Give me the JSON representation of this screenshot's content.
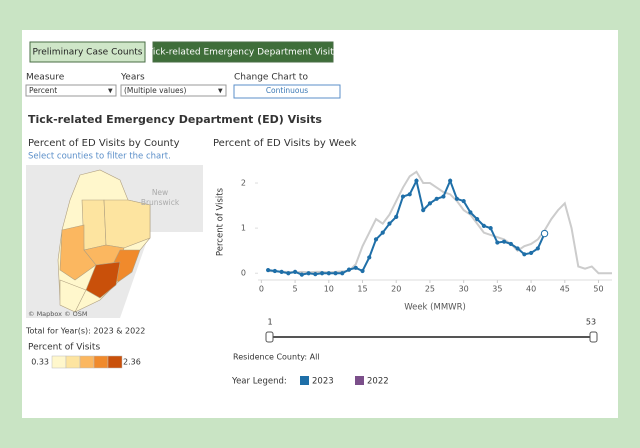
{
  "tabs": [
    {
      "label": "Preliminary Case Counts",
      "selected": false
    },
    {
      "label": "Tick-related Emergency Department Visits",
      "selected": true
    }
  ],
  "filters": [
    {
      "label": "Measure",
      "value": "Percent"
    },
    {
      "label": "Years",
      "value": "(Multiple values)"
    },
    {
      "label": "Change Chart to",
      "value": "Continuous"
    }
  ],
  "dashboard_title": "Tick-related Emergency Department (ED) Visits",
  "map": {
    "title": "Percent of ED Visits by County",
    "subtitle": "Select counties to filter the chart.",
    "place_label": [
      "New",
      "Brunswick"
    ],
    "attribution": "© Mapbox © OSM",
    "total_note": "Total for Year(s): 2023 & 2022",
    "legend_title": "Percent of Visits",
    "legend_min": 0.33,
    "legend_max": 2.36,
    "legend_colors": [
      "#fff7cc",
      "#fde4a0",
      "#fbb760",
      "#f08a2c",
      "#c9500a"
    ]
  },
  "chart_data": {
    "type": "line",
    "title": "Percent of ED Visits by Week",
    "y_label": "Percent of Visits",
    "x_label": "Week (MMWR)",
    "x": [
      1,
      2,
      3,
      4,
      5,
      6,
      7,
      8,
      9,
      10,
      11,
      12,
      13,
      14,
      15,
      16,
      17,
      18,
      19,
      20,
      21,
      22,
      23,
      24,
      25,
      26,
      27,
      28,
      29,
      30,
      31,
      32,
      33,
      34,
      35,
      36,
      37,
      38,
      39,
      40,
      41,
      42,
      43,
      44,
      45,
      46,
      47,
      48,
      49,
      50,
      51,
      52
    ],
    "series": [
      {
        "name": "2022",
        "color": "#cccccc",
        "legend_color": "#7b4f8a",
        "values": [
          0.05,
          0.04,
          0.03,
          0.03,
          0.02,
          0.03,
          0.02,
          0.03,
          0.03,
          0.02,
          0.03,
          0.04,
          0.05,
          0.2,
          0.6,
          0.9,
          1.2,
          1.1,
          1.3,
          1.6,
          1.9,
          2.15,
          2.25,
          2.0,
          2.0,
          1.9,
          1.8,
          1.75,
          1.6,
          1.4,
          1.3,
          1.1,
          0.9,
          0.85,
          0.8,
          0.75,
          0.65,
          0.5,
          0.6,
          0.65,
          0.75,
          0.95,
          1.2,
          1.4,
          1.55,
          1.0,
          0.15,
          0.1,
          0.15,
          0.0,
          0.0,
          0.0
        ]
      },
      {
        "name": "2023",
        "color": "#1f6fa8",
        "legend_color": "#1f6fa8",
        "values": [
          0.07,
          0.05,
          0.03,
          0.0,
          0.03,
          -0.03,
          0.0,
          -0.02,
          0.0,
          0.0,
          0.0,
          0.0,
          0.08,
          0.12,
          0.05,
          0.35,
          0.75,
          0.9,
          1.1,
          1.25,
          1.7,
          1.75,
          2.05,
          1.4,
          1.55,
          1.65,
          1.7,
          2.05,
          1.65,
          1.6,
          1.35,
          1.2,
          1.05,
          1.0,
          0.68,
          0.7,
          0.65,
          0.55,
          0.42,
          0.45,
          0.55,
          0.88,
          null,
          null,
          null,
          null,
          null,
          null,
          null,
          null,
          null,
          null
        ]
      }
    ],
    "xlim": [
      -0.5,
      52
    ],
    "ylim": [
      -0.15,
      2.4
    ],
    "xticks": [
      0,
      5,
      10,
      15,
      20,
      25,
      30,
      35,
      40,
      45,
      50
    ],
    "yticks": [
      0,
      1,
      2
    ],
    "grid": false
  },
  "slider": {
    "min": 1,
    "max": 53
  },
  "residence_note": "Residence County: All",
  "year_legend_title": "Year Legend:"
}
